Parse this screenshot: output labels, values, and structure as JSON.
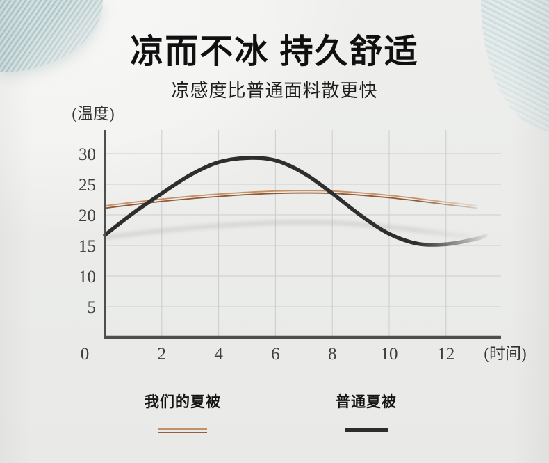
{
  "header": {
    "title": "凉而不冰 持久舒适",
    "subtitle": "凉感度比普通面料散更快"
  },
  "chart_data": {
    "type": "line",
    "xlabel": "(时间)",
    "ylabel": "(温度)",
    "x_ticks": [
      0,
      2,
      4,
      6,
      8,
      10,
      12
    ],
    "y_ticks": [
      5,
      10,
      15,
      20,
      25,
      30
    ],
    "xlim": [
      0,
      14
    ],
    "ylim": [
      0,
      33.5
    ],
    "grid": true,
    "legend_position": "bottom",
    "series": [
      {
        "name": "我们的夏被",
        "style": "double-thin-line",
        "color_top": "#c79067",
        "color_bottom": "#8f5a33",
        "x": [
          0,
          2,
          4,
          6,
          8,
          10,
          12,
          13.1
        ],
        "y": [
          21.3,
          22.4,
          23.2,
          23.7,
          23.7,
          23.0,
          21.9,
          21.3
        ]
      },
      {
        "name": "普通夏被",
        "style": "thick-line",
        "color": "#2e2e2e",
        "x": [
          0,
          1,
          2,
          3,
          4,
          5,
          6,
          7,
          8,
          9,
          10,
          11,
          12,
          13,
          13.4
        ],
        "y": [
          16.7,
          20.3,
          23.5,
          26.5,
          28.6,
          29.3,
          28.9,
          26.8,
          23.5,
          19.9,
          16.9,
          15.3,
          15.2,
          16.0,
          16.6
        ]
      }
    ]
  },
  "legend": {
    "items": [
      {
        "label": "我们的夏被",
        "swatch": "double-orange"
      },
      {
        "label": "普通夏被",
        "swatch": "solid-black"
      }
    ]
  },
  "colors": {
    "background": "#ebecea",
    "grid": "#cccccc",
    "axis": "#4e4e4e",
    "fabric": "#c2d4d6",
    "series_orange_top": "#c79067",
    "series_orange_bottom": "#8f5a33",
    "series_black": "#2e2e2e"
  }
}
